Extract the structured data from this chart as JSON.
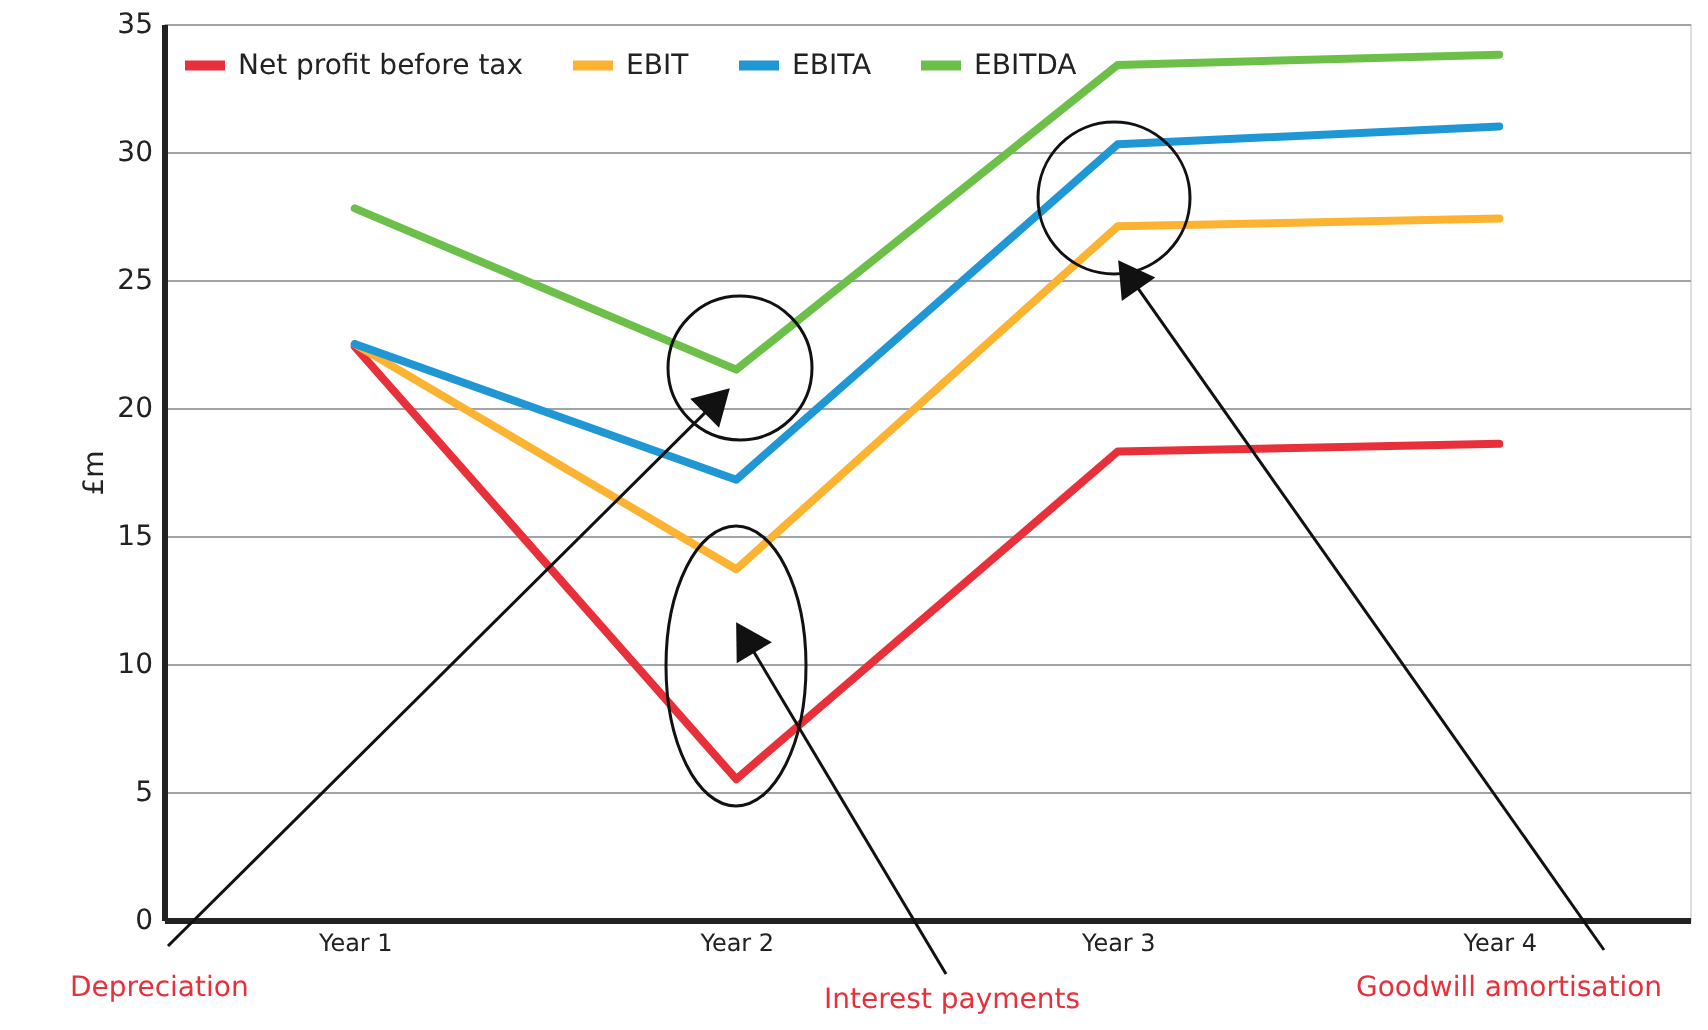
{
  "chart_data": {
    "type": "line",
    "ylabel": "£m",
    "categories": [
      "Year 1",
      "Year 2",
      "Year 3",
      "Year 4"
    ],
    "series": [
      {
        "name": "Net profit before tax",
        "color": "#e8303a",
        "values": [
          22.4,
          5.5,
          18.3,
          18.6
        ]
      },
      {
        "name": "EBIT",
        "color": "#fbb331",
        "values": [
          22.5,
          13.7,
          27.1,
          27.4
        ]
      },
      {
        "name": "EBITA",
        "color": "#1f97d4",
        "values": [
          22.5,
          17.2,
          30.3,
          31.0
        ]
      },
      {
        "name": "EBITDA",
        "color": "#6cc04a",
        "values": [
          27.8,
          21.5,
          33.4,
          33.8
        ]
      }
    ],
    "ylim": [
      0,
      35
    ],
    "yticks": [
      0,
      5,
      10,
      15,
      20,
      25,
      30,
      35
    ],
    "grid": "y",
    "legend": "top left",
    "marker": "none",
    "line_style": "solid",
    "annotations": [
      "Depreciation",
      "Interest payments",
      "Goodwill amortisation"
    ]
  }
}
